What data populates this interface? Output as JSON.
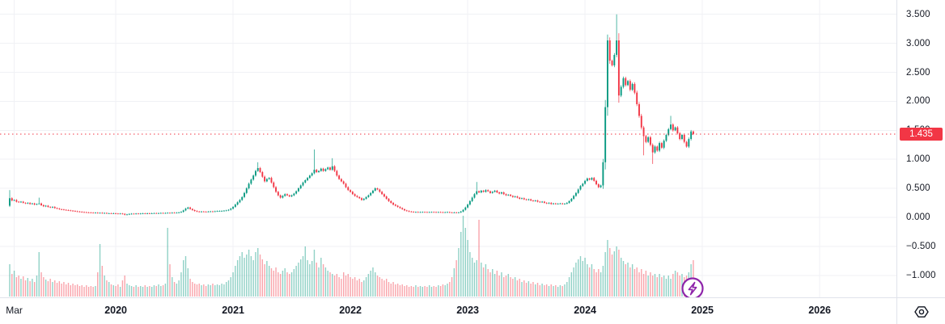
{
  "chart_data": {
    "type": "candlestick_with_volume",
    "timeframe": "weekly",
    "title": "",
    "x_range_visible": [
      "Mar 2019",
      "2026"
    ],
    "grid": true,
    "last_price": 1.435,
    "last_price_label": "1.435",
    "price_axis": {
      "tick_labels": [
        "3.500",
        "3.000",
        "2.500",
        "2.000",
        "1.500",
        "1.000",
        "0.500",
        "0.000",
        "−0.500",
        "−1.000"
      ],
      "tick_values": [
        3.5,
        3.0,
        2.5,
        2.0,
        1.5,
        1.0,
        0.5,
        0.0,
        -0.5,
        -1.0
      ]
    },
    "time_axis": {
      "ticks": [
        {
          "label": "Mar",
          "week": 2,
          "bold": false
        },
        {
          "label": "2020",
          "week": 47,
          "bold": true
        },
        {
          "label": "2021",
          "week": 99,
          "bold": true
        },
        {
          "label": "2022",
          "week": 151,
          "bold": true
        },
        {
          "label": "2023",
          "week": 203,
          "bold": true
        },
        {
          "label": "2024",
          "week": 255,
          "bold": true
        },
        {
          "label": "2025",
          "week": 307,
          "bold": true
        },
        {
          "label": "2026",
          "week": 359,
          "bold": true
        }
      ]
    },
    "first_open": 0.2,
    "closes": [
      0.33,
      0.29,
      0.3,
      0.27,
      0.26,
      0.27,
      0.25,
      0.24,
      0.25,
      0.23,
      0.24,
      0.22,
      0.23,
      0.24,
      0.21,
      0.19,
      0.2,
      0.18,
      0.17,
      0.18,
      0.16,
      0.15,
      0.14,
      0.135,
      0.13,
      0.125,
      0.12,
      0.115,
      0.11,
      0.105,
      0.1,
      0.095,
      0.09,
      0.088,
      0.085,
      0.082,
      0.08,
      0.078,
      0.08,
      0.075,
      0.078,
      0.072,
      0.075,
      0.07,
      0.07,
      0.068,
      0.07,
      0.065,
      0.062,
      0.065,
      0.06,
      0.045,
      0.05,
      0.058,
      0.062,
      0.06,
      0.065,
      0.062,
      0.065,
      0.068,
      0.065,
      0.07,
      0.068,
      0.07,
      0.072,
      0.07,
      0.072,
      0.075,
      0.072,
      0.075,
      0.078,
      0.075,
      0.08,
      0.078,
      0.08,
      0.085,
      0.095,
      0.12,
      0.15,
      0.17,
      0.145,
      0.125,
      0.11,
      0.1,
      0.095,
      0.1,
      0.098,
      0.095,
      0.1,
      0.102,
      0.1,
      0.105,
      0.108,
      0.11,
      0.112,
      0.115,
      0.12,
      0.13,
      0.15,
      0.18,
      0.22,
      0.26,
      0.3,
      0.35,
      0.42,
      0.5,
      0.58,
      0.65,
      0.72,
      0.8,
      0.85,
      0.78,
      0.7,
      0.62,
      0.66,
      0.68,
      0.6,
      0.52,
      0.44,
      0.38,
      0.34,
      0.37,
      0.4,
      0.38,
      0.36,
      0.38,
      0.41,
      0.45,
      0.5,
      0.55,
      0.6,
      0.64,
      0.68,
      0.72,
      0.76,
      0.82,
      0.78,
      0.8,
      0.84,
      0.8,
      0.83,
      0.86,
      0.82,
      0.88,
      0.8,
      0.72,
      0.66,
      0.62,
      0.58,
      0.52,
      0.47,
      0.44,
      0.4,
      0.37,
      0.35,
      0.33,
      0.3,
      0.32,
      0.35,
      0.38,
      0.42,
      0.46,
      0.5,
      0.48,
      0.44,
      0.4,
      0.36,
      0.32,
      0.28,
      0.25,
      0.22,
      0.2,
      0.18,
      0.16,
      0.14,
      0.12,
      0.11,
      0.1,
      0.095,
      0.09,
      0.092,
      0.088,
      0.09,
      0.092,
      0.09,
      0.088,
      0.09,
      0.092,
      0.09,
      0.088,
      0.09,
      0.088,
      0.085,
      0.088,
      0.09,
      0.085,
      0.082,
      0.085,
      0.082,
      0.085,
      0.1,
      0.13,
      0.17,
      0.22,
      0.28,
      0.34,
      0.4,
      0.45,
      0.43,
      0.46,
      0.44,
      0.47,
      0.45,
      0.42,
      0.44,
      0.46,
      0.43,
      0.41,
      0.43,
      0.4,
      0.38,
      0.39,
      0.37,
      0.35,
      0.36,
      0.34,
      0.32,
      0.33,
      0.31,
      0.3,
      0.31,
      0.29,
      0.28,
      0.29,
      0.27,
      0.26,
      0.27,
      0.25,
      0.24,
      0.25,
      0.23,
      0.24,
      0.23,
      0.235,
      0.24,
      0.23,
      0.235,
      0.25,
      0.28,
      0.32,
      0.37,
      0.42,
      0.48,
      0.54,
      0.58,
      0.63,
      0.67,
      0.65,
      0.68,
      0.63,
      0.57,
      0.52,
      0.55,
      0.95,
      1.9,
      3.05,
      2.7,
      2.62,
      2.8,
      3.05,
      2.1,
      2.25,
      2.4,
      2.28,
      2.35,
      2.2,
      2.3,
      2.15,
      1.95,
      1.75,
      1.55,
      1.4,
      1.3,
      1.38,
      1.25,
      1.12,
      1.22,
      1.15,
      1.28,
      1.2,
      1.32,
      1.42,
      1.52,
      1.6,
      1.5,
      1.55,
      1.45,
      1.35,
      1.42,
      1.3,
      1.22,
      1.35,
      1.48,
      1.435
    ],
    "wick_overrides": {
      "0": {
        "h": 0.47,
        "l": 0.18
      },
      "13": {
        "h": 0.34
      },
      "110": {
        "h": 0.95
      },
      "135": {
        "h": 1.17
      },
      "143": {
        "h": 1.02
      },
      "207": {
        "h": 0.61
      },
      "265": {
        "h": 3.15
      },
      "269": {
        "h": 3.5
      },
      "281": {
        "l": 1.07
      },
      "285": {
        "l": 0.92
      },
      "293": {
        "h": 1.75
      }
    },
    "volumes": [
      40,
      28,
      32,
      24,
      26,
      22,
      25,
      20,
      23,
      19,
      22,
      18,
      26,
      55,
      30,
      24,
      21,
      19,
      22,
      18,
      20,
      17,
      19,
      16,
      18,
      15,
      17,
      14,
      16,
      14,
      15,
      13,
      14,
      12,
      14,
      12,
      13,
      12,
      13,
      30,
      65,
      38,
      26,
      20,
      18,
      15,
      14,
      13,
      15,
      12,
      20,
      26,
      16,
      14,
      13,
      12,
      14,
      12,
      13,
      12,
      14,
      12,
      13,
      12,
      14,
      13,
      15,
      13,
      14,
      16,
      85,
      40,
      24,
      18,
      16,
      20,
      30,
      45,
      50,
      35,
      22,
      18,
      16,
      15,
      16,
      14,
      15,
      13,
      15,
      14,
      16,
      14,
      15,
      14,
      16,
      15,
      18,
      20,
      24,
      30,
      38,
      45,
      50,
      55,
      48,
      52,
      58,
      50,
      45,
      55,
      60,
      52,
      46,
      40,
      44,
      38,
      35,
      32,
      36,
      30,
      28,
      32,
      35,
      30,
      28,
      30,
      34,
      38,
      42,
      46,
      50,
      62,
      45,
      40,
      44,
      58,
      42,
      36,
      48,
      40,
      36,
      32,
      30,
      28,
      26,
      28,
      24,
      22,
      30,
      26,
      28,
      24,
      22,
      24,
      20,
      22,
      18,
      20,
      24,
      28,
      32,
      36,
      30,
      26,
      24,
      22,
      20,
      22,
      18,
      16,
      18,
      15,
      16,
      14,
      15,
      13,
      14,
      12,
      13,
      12,
      14,
      12,
      13,
      12,
      13,
      12,
      14,
      12,
      13,
      12,
      14,
      13,
      15,
      14,
      16,
      18,
      24,
      35,
      45,
      60,
      80,
      100,
      85,
      70,
      55,
      48,
      42,
      45,
      95,
      42,
      36,
      40,
      34,
      30,
      34,
      28,
      32,
      26,
      30,
      24,
      26,
      28,
      24,
      22,
      24,
      20,
      22,
      18,
      20,
      17,
      19,
      16,
      18,
      15,
      17,
      14,
      16,
      14,
      15,
      13,
      15,
      13,
      14,
      12,
      14,
      13,
      15,
      18,
      24,
      30,
      36,
      42,
      46,
      50,
      44,
      48,
      40,
      36,
      40,
      34,
      30,
      34,
      30,
      38,
      55,
      70,
      60,
      52,
      56,
      62,
      58,
      48,
      44,
      40,
      42,
      36,
      40,
      34,
      36,
      30,
      34,
      28,
      32,
      26,
      30,
      26,
      28,
      24,
      28,
      24,
      26,
      22,
      26,
      22,
      28,
      32,
      30,
      26,
      28,
      24,
      26,
      30,
      40,
      45
    ],
    "colors": {
      "up": "#089981",
      "down": "#f23645",
      "volume_up": "rgba(8,153,129,0.45)",
      "volume_down": "rgba(242,54,69,0.45)",
      "grid": "#f0f1f5",
      "axis_text": "#131722",
      "axis_border": "#e0e3eb",
      "last_price_line": "#f23645",
      "badge_bg": "#f23645",
      "badge_text": "#ffffff",
      "boost_purple": "#8e24aa",
      "corner_icon": "#131722"
    }
  },
  "icons": {
    "boost": "lightning-bolt-in-circle",
    "corner": "hexagon-with-dot"
  }
}
